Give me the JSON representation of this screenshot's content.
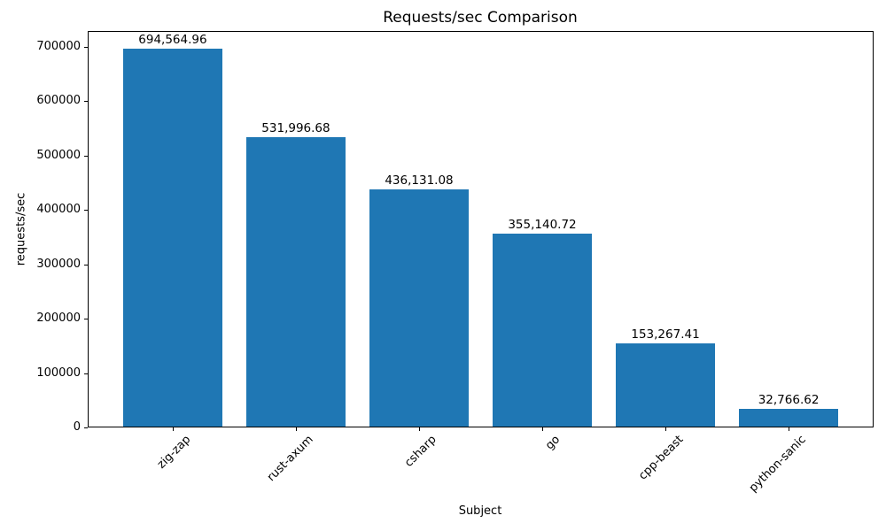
{
  "chart_data": {
    "type": "bar",
    "title": "Requests/sec Comparison",
    "xlabel": "Subject",
    "ylabel": "requests/sec",
    "categories": [
      "zig-zap",
      "rust-axum",
      "csharp",
      "go",
      "cpp-beast",
      "python-sanic"
    ],
    "values": [
      694564.96,
      531996.68,
      436131.08,
      355140.72,
      153267.41,
      32766.62
    ],
    "bar_labels": [
      "694,564.96",
      "531,996.68",
      "436,131.08",
      "355,140.72",
      "153,267.41",
      "32,766.62"
    ],
    "y_ticks": [
      0,
      100000,
      200000,
      300000,
      400000,
      500000,
      600000,
      700000
    ],
    "y_tick_labels": [
      "0",
      "100000",
      "200000",
      "300000",
      "400000",
      "500000",
      "600000",
      "700000"
    ],
    "ylim": [
      0,
      729293
    ],
    "bar_color": "#1f77b4",
    "text_color": "#000000",
    "background_color": "#ffffff",
    "grid": false,
    "legend": null,
    "bar_width_fraction": 0.8
  }
}
